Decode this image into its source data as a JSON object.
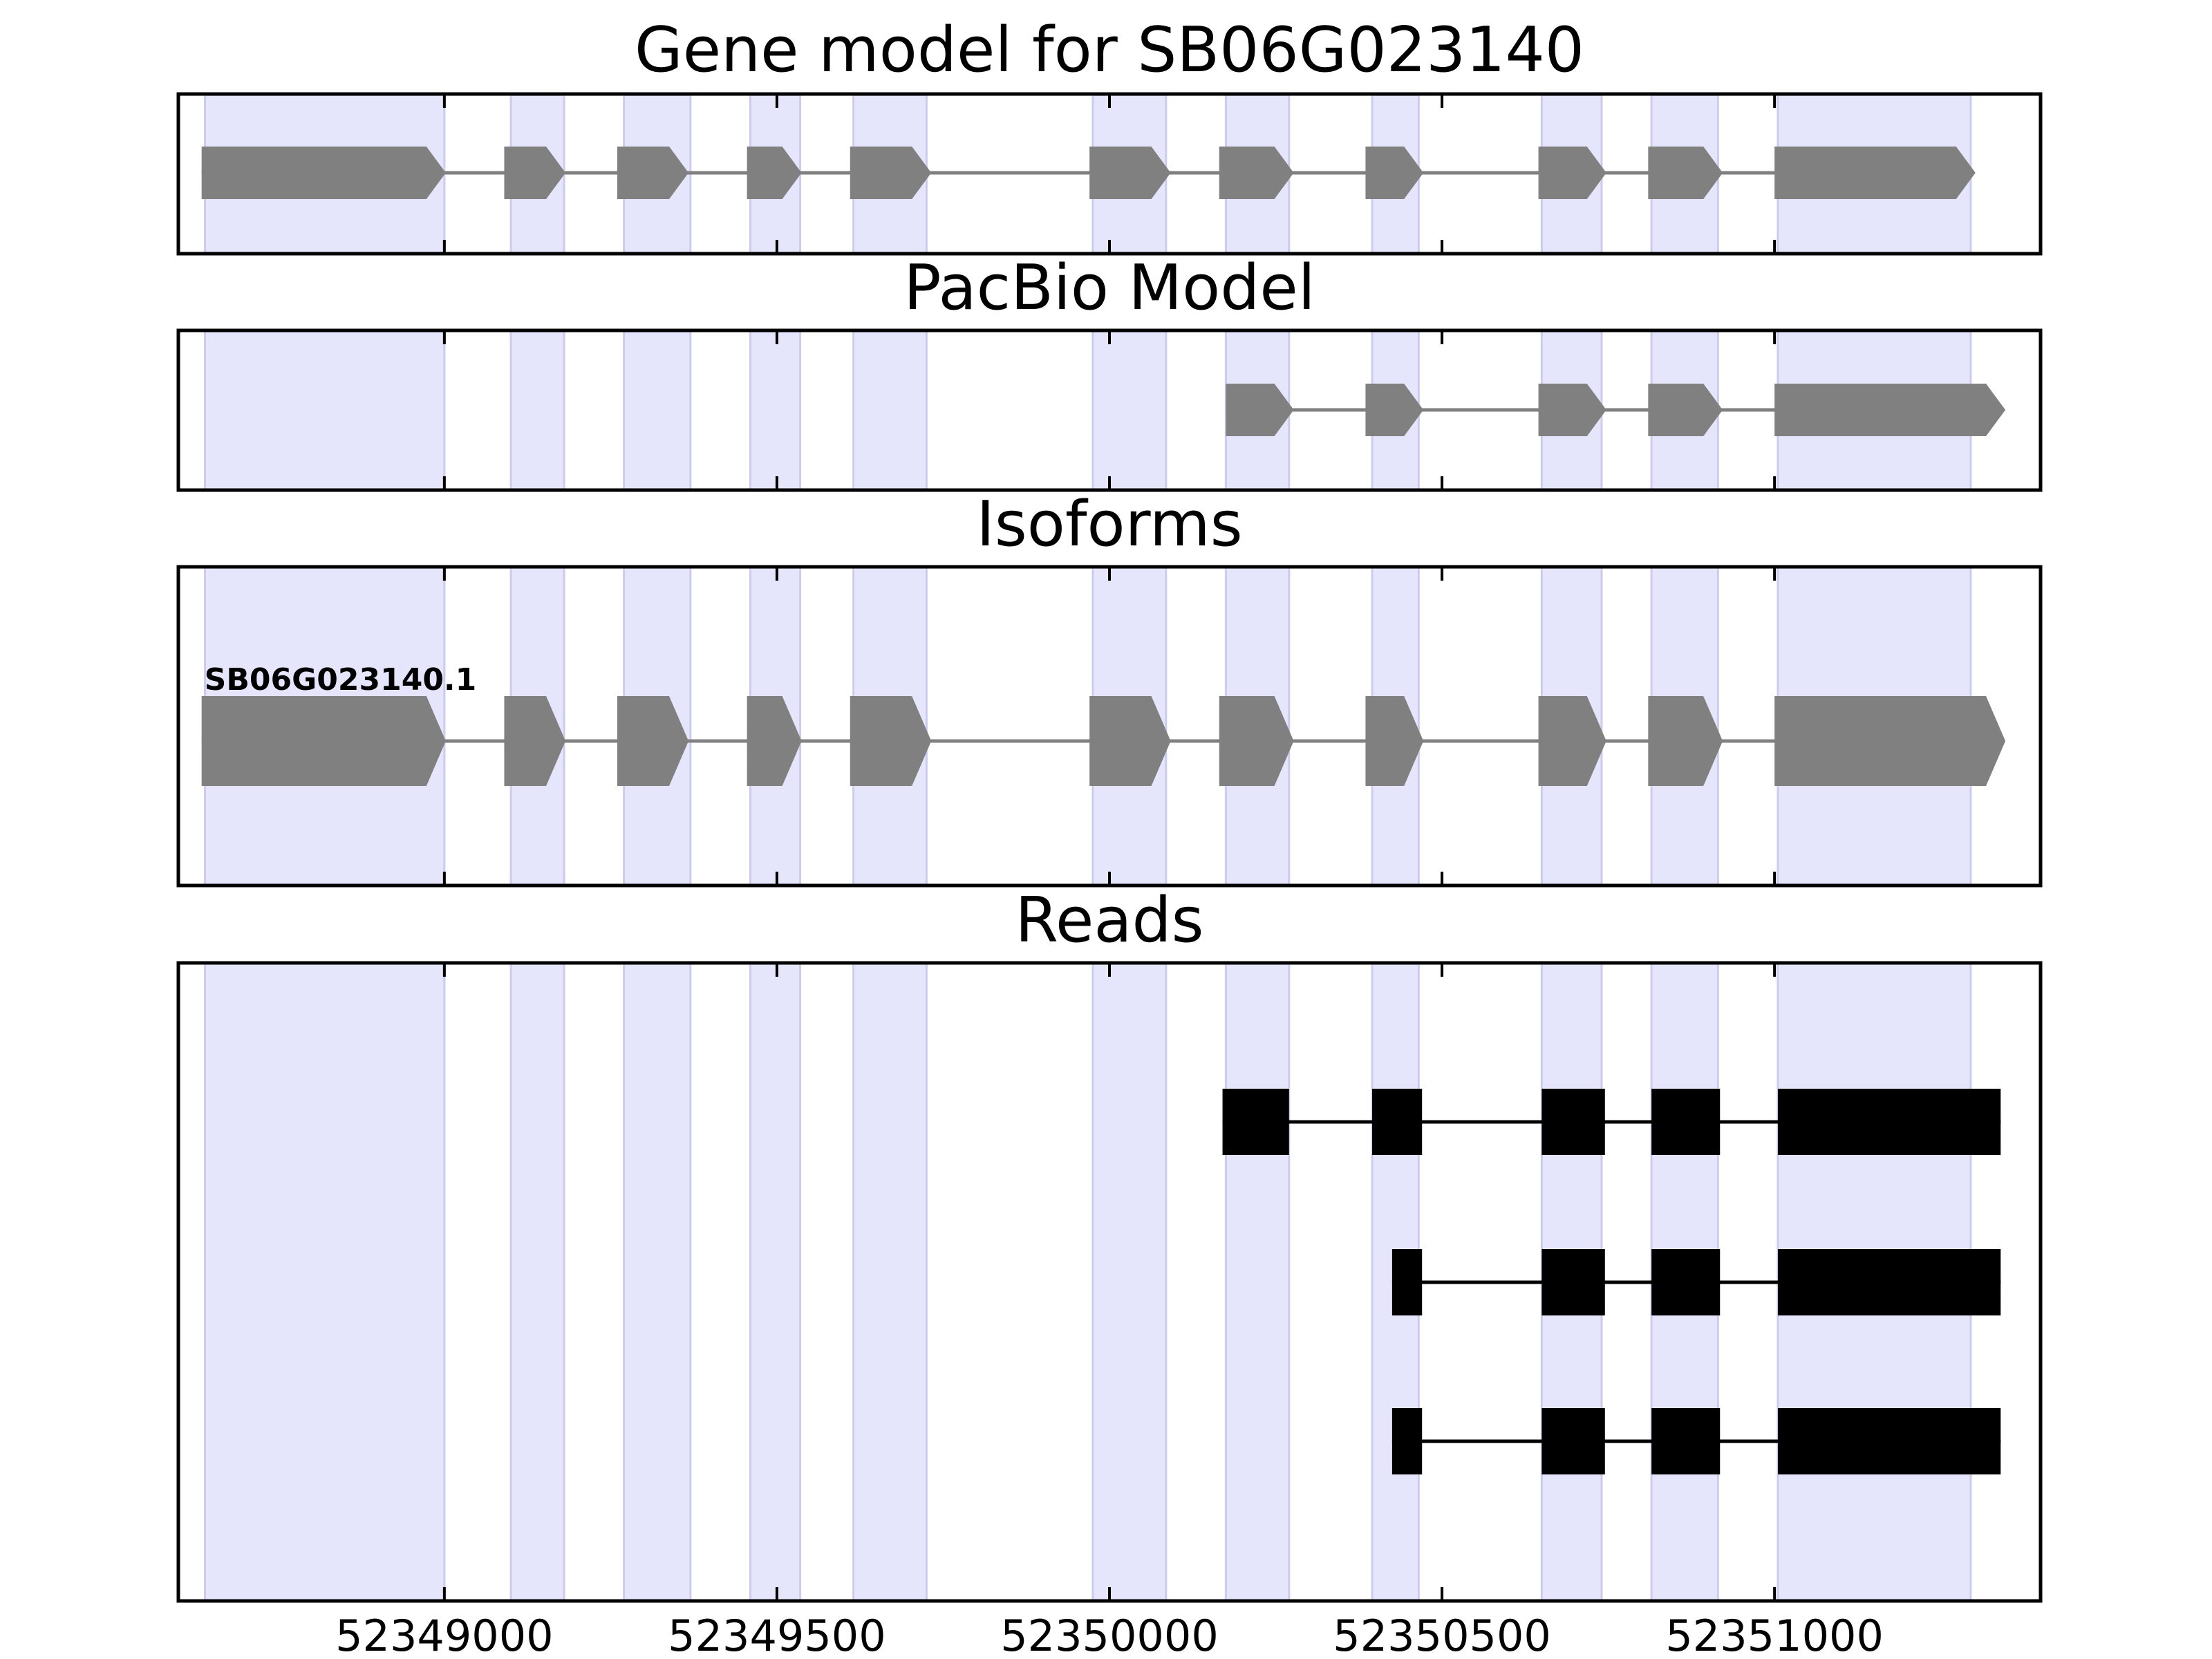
{
  "chart_data": {
    "type": "gene-structure",
    "x_range": [
      52348600,
      52351400
    ],
    "x_ticks": [
      52349000,
      52349500,
      52350000,
      52350500,
      52351000
    ],
    "x_tick_labels": [
      "52349000",
      "52349500",
      "52350000",
      "52350500",
      "52351000"
    ],
    "exon_regions": [
      [
        52348640,
        52349000
      ],
      [
        52349100,
        52349180
      ],
      [
        52349270,
        52349370
      ],
      [
        52349460,
        52349535
      ],
      [
        52349615,
        52349725
      ],
      [
        52349975,
        52350085
      ],
      [
        52350175,
        52350270
      ],
      [
        52350395,
        52350465
      ],
      [
        52350650,
        52350740
      ],
      [
        52350815,
        52350915
      ],
      [
        52351005,
        52351295
      ]
    ],
    "colors": {
      "exon_shade": "#e5e5fc",
      "exon_shade_edge": "#ccccee",
      "model_feature": "#808080",
      "read_feature": "#000000",
      "axes": "#000000"
    },
    "panels": [
      {
        "title": "Gene model for SB06G023140",
        "kind": "model",
        "tracks": [
          {
            "label": "",
            "exons": [
              [
                52348635,
                52349000
              ],
              [
                52349090,
                52349180
              ],
              [
                52349260,
                52349365
              ],
              [
                52349455,
                52349535
              ],
              [
                52349610,
                52349730
              ],
              [
                52349970,
                52350090
              ],
              [
                52350165,
                52350275
              ],
              [
                52350385,
                52350470
              ],
              [
                52350645,
                52350745
              ],
              [
                52350810,
                52350920
              ],
              [
                52351000,
                52351300
              ]
            ]
          }
        ]
      },
      {
        "title": "PacBio Model",
        "kind": "model",
        "tracks": [
          {
            "label": "",
            "exons": [
              [
                52350175,
                52350275
              ],
              [
                52350385,
                52350470
              ],
              [
                52350645,
                52350745
              ],
              [
                52350810,
                52350920
              ],
              [
                52351000,
                52351345
              ]
            ]
          }
        ]
      },
      {
        "title": "Isoforms",
        "kind": "model",
        "tracks": [
          {
            "label": "SB06G023140.1",
            "exons": [
              [
                52348635,
                52349000
              ],
              [
                52349090,
                52349180
              ],
              [
                52349260,
                52349365
              ],
              [
                52349455,
                52349535
              ],
              [
                52349610,
                52349730
              ],
              [
                52349970,
                52350090
              ],
              [
                52350165,
                52350275
              ],
              [
                52350385,
                52350470
              ],
              [
                52350645,
                52350745
              ],
              [
                52350810,
                52350920
              ],
              [
                52351000,
                52351345
              ]
            ]
          }
        ]
      },
      {
        "title": "Reads",
        "kind": "reads",
        "tracks": [
          {
            "label": "",
            "exons": [
              [
                52350170,
                52350270
              ],
              [
                52350395,
                52350470
              ],
              [
                52350650,
                52350745
              ],
              [
                52350815,
                52350918
              ],
              [
                52351005,
                52351340
              ]
            ]
          },
          {
            "label": "",
            "exons": [
              [
                52350425,
                52350470
              ],
              [
                52350650,
                52350745
              ],
              [
                52350815,
                52350918
              ],
              [
                52351005,
                52351340
              ]
            ]
          },
          {
            "label": "",
            "exons": [
              [
                52350425,
                52350470
              ],
              [
                52350650,
                52350745
              ],
              [
                52350815,
                52350918
              ],
              [
                52351005,
                52351340
              ]
            ]
          }
        ]
      }
    ]
  }
}
